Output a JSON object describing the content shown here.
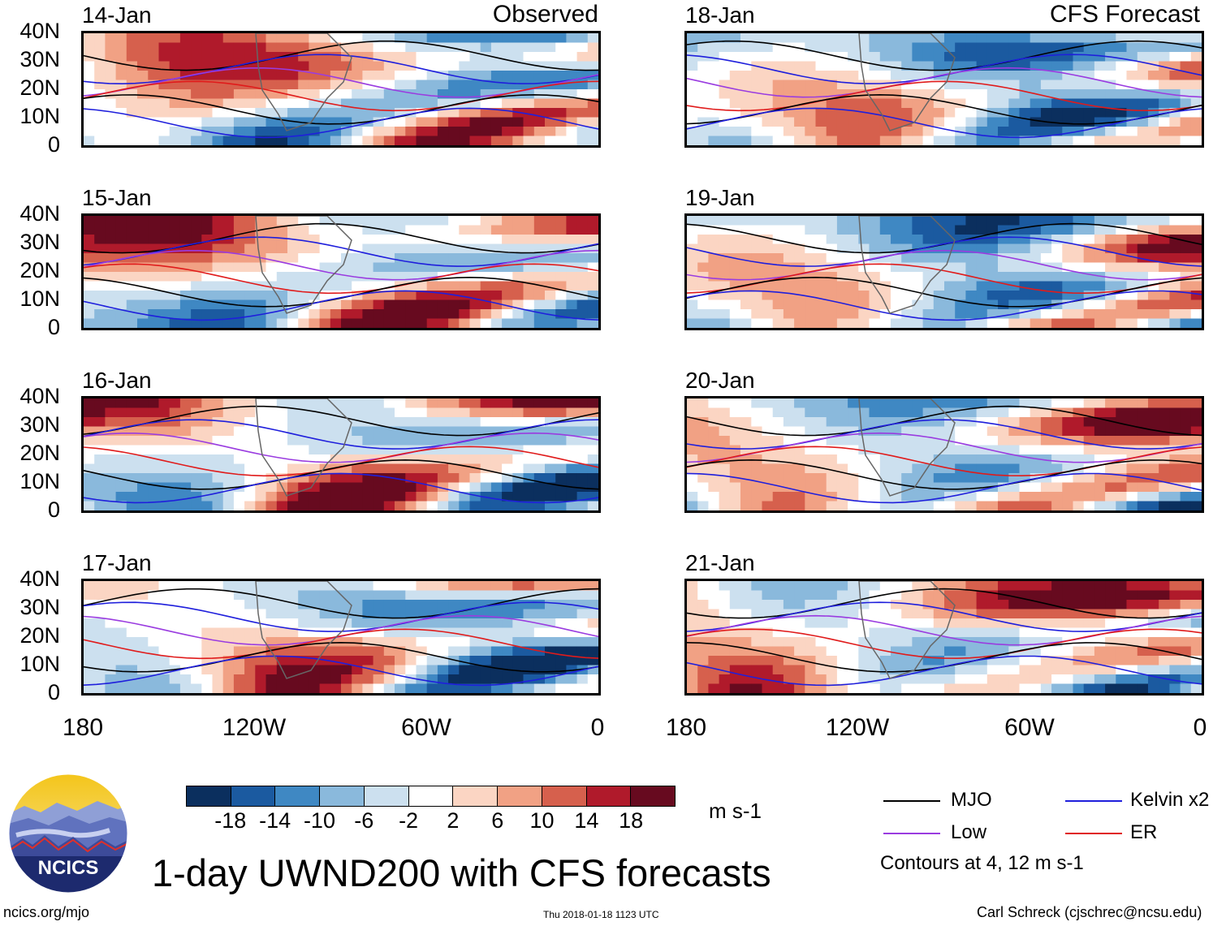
{
  "panels": {
    "left": [
      {
        "date": "14-Jan",
        "label": "Observed"
      },
      {
        "date": "15-Jan",
        "label": ""
      },
      {
        "date": "16-Jan",
        "label": ""
      },
      {
        "date": "17-Jan",
        "label": ""
      }
    ],
    "right": [
      {
        "date": "18-Jan",
        "label": "CFS Forecast"
      },
      {
        "date": "19-Jan",
        "label": ""
      },
      {
        "date": "20-Jan",
        "label": ""
      },
      {
        "date": "21-Jan",
        "label": ""
      }
    ]
  },
  "lat_labels": [
    "40N",
    "30N",
    "20N",
    "10N",
    "0"
  ],
  "lon_labels": [
    "180",
    "120W",
    "60W",
    "0"
  ],
  "colorbar": {
    "ticks": [
      "-18",
      "-14",
      "-10",
      "-6",
      "-2",
      "2",
      "6",
      "10",
      "14",
      "18"
    ],
    "colors": [
      "#0b2f5e",
      "#1b5aa0",
      "#3f88c3",
      "#8ab9dc",
      "#cce0ef",
      "#ffffff",
      "#fbd5c3",
      "#f1a184",
      "#d6604d",
      "#b01a2b",
      "#670a1f"
    ],
    "units": "m s-1"
  },
  "legend": {
    "items": [
      {
        "label": "MJO",
        "color": "#000000"
      },
      {
        "label": "Kelvin x2",
        "color": "#1f1fdc"
      },
      {
        "label": "Low",
        "color": "#9a3ce0"
      },
      {
        "label": "ER",
        "color": "#e01b1b"
      }
    ],
    "note": "Contours at 4, 12 m s-1"
  },
  "logo": {
    "text": "NCICS"
  },
  "title": "1-day UWND200 with CFS forecasts",
  "footer": {
    "url": "ncics.org/mjo",
    "timestamp": "Thu 2018-01-18 1123 UTC",
    "credit": "Carl Schreck (cjschrec@ncsu.edu)"
  }
}
